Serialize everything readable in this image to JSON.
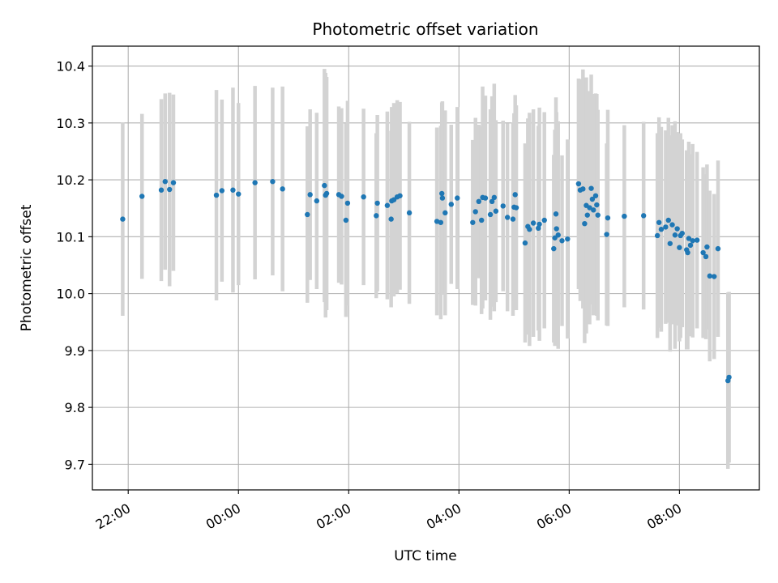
{
  "chart_data": {
    "type": "scatter",
    "title": "Photometric offset variation",
    "xlabel": "UTC time",
    "ylabel": "Photometric offset",
    "x_tick_labels": [
      "22:00",
      "00:00",
      "02:00",
      "04:00",
      "06:00",
      "08:00"
    ],
    "y_tick_labels": [
      "9.7",
      "9.8",
      "9.9",
      "10.0",
      "10.1",
      "10.2",
      "10.3",
      "10.4"
    ],
    "xlim_hours": [
      -2.65,
      9.45
    ],
    "ylim": [
      9.655,
      10.435
    ],
    "grid": true,
    "marker_color": "#1f77b4",
    "errorbar_color": "#d3d3d3",
    "series": [
      {
        "x_hours": [
          -2.1,
          -1.75,
          -1.4,
          -1.33,
          -1.25,
          -1.18,
          -0.4,
          -0.3,
          -0.1,
          0.0,
          0.3,
          0.62,
          0.8,
          1.25,
          1.3,
          1.42,
          1.56,
          1.58,
          1.6,
          1.82,
          1.87,
          1.95,
          1.98,
          2.27,
          2.5,
          2.52,
          2.7,
          2.77,
          2.78,
          2.82,
          2.88,
          2.93,
          3.1,
          3.6,
          3.67,
          3.69,
          3.7,
          3.75,
          3.86,
          3.97,
          4.25,
          4.3,
          4.36,
          4.41,
          4.43,
          4.48,
          4.57,
          4.6,
          4.64,
          4.67,
          4.8,
          4.88,
          4.98,
          5.0,
          5.02,
          5.04,
          5.2,
          5.25,
          5.28,
          5.35,
          5.44,
          5.46,
          5.55,
          5.72,
          5.74,
          5.76,
          5.77,
          5.8,
          5.87,
          5.97,
          6.17,
          6.2,
          6.25,
          6.28,
          6.31,
          6.33,
          6.37,
          6.4,
          6.42,
          6.44,
          6.48,
          6.5,
          6.52,
          6.68,
          6.7,
          7.0,
          7.35,
          7.6,
          7.63,
          7.67,
          7.75,
          7.8,
          7.83,
          7.87,
          7.92,
          7.96,
          8.0,
          8.02,
          8.05,
          8.13,
          8.15,
          8.17,
          8.2,
          8.24,
          8.32,
          8.43,
          8.48,
          8.5,
          8.55,
          8.63,
          8.7,
          8.88,
          8.9
        ],
        "y": [
          10.131,
          10.171,
          10.182,
          10.197,
          10.183,
          10.195,
          10.173,
          10.181,
          10.182,
          10.175,
          10.195,
          10.197,
          10.184,
          10.139,
          10.174,
          10.163,
          10.19,
          10.173,
          10.176,
          10.174,
          10.171,
          10.129,
          10.159,
          10.17,
          10.137,
          10.159,
          10.155,
          10.131,
          10.163,
          10.165,
          10.17,
          10.172,
          10.142,
          10.127,
          10.125,
          10.176,
          10.168,
          10.142,
          10.157,
          10.168,
          10.125,
          10.144,
          10.162,
          10.129,
          10.169,
          10.168,
          10.139,
          10.162,
          10.169,
          10.145,
          10.154,
          10.134,
          10.131,
          10.152,
          10.174,
          10.151,
          10.089,
          10.118,
          10.113,
          10.124,
          10.115,
          10.122,
          10.129,
          10.079,
          10.098,
          10.14,
          10.114,
          10.103,
          10.093,
          10.096,
          10.193,
          10.182,
          10.184,
          10.123,
          10.155,
          10.138,
          10.151,
          10.185,
          10.166,
          10.147,
          10.172,
          10.156,
          10.138,
          10.104,
          10.133,
          10.136,
          10.137,
          10.102,
          10.125,
          10.113,
          10.117,
          10.129,
          10.088,
          10.121,
          10.103,
          10.114,
          10.081,
          10.102,
          10.106,
          10.077,
          10.072,
          10.097,
          10.085,
          10.093,
          10.094,
          10.072,
          10.065,
          10.082,
          10.031,
          10.03,
          10.079,
          9.847,
          9.853
        ],
        "yerr": [
          0.17,
          0.145,
          0.16,
          0.155,
          0.17,
          0.155,
          0.185,
          0.16,
          0.18,
          0.16,
          0.17,
          0.165,
          0.18,
          0.155,
          0.15,
          0.155,
          0.205,
          0.215,
          0.205,
          0.155,
          0.155,
          0.17,
          0.18,
          0.155,
          0.145,
          0.155,
          0.165,
          0.155,
          0.165,
          0.17,
          0.17,
          0.165,
          0.16,
          0.165,
          0.17,
          0.16,
          0.17,
          0.18,
          0.14,
          0.16,
          0.145,
          0.165,
          0.135,
          0.165,
          0.195,
          0.18,
          0.185,
          0.185,
          0.2,
          0.16,
          0.15,
          0.165,
          0.17,
          0.165,
          0.175,
          0.18,
          0.175,
          0.19,
          0.205,
          0.2,
          0.18,
          0.205,
          0.19,
          0.165,
          0.19,
          0.205,
          0.205,
          0.2,
          0.15,
          0.175,
          0.185,
          0.195,
          0.21,
          0.21,
          0.225,
          0.175,
          0.205,
          0.2,
          0.185,
          0.185,
          0.18,
          0.195,
          0.185,
          0.16,
          0.19,
          0.16,
          0.165,
          0.18,
          0.185,
          0.18,
          0.17,
          0.18,
          0.19,
          0.175,
          0.2,
          0.17,
          0.165,
          0.18,
          0.165,
          0.175,
          0.17,
          0.17,
          0.16,
          0.17,
          0.155,
          0.15,
          0.145,
          0.145,
          0.15,
          0.145,
          0.155,
          0.155,
          0.15
        ]
      }
    ]
  }
}
